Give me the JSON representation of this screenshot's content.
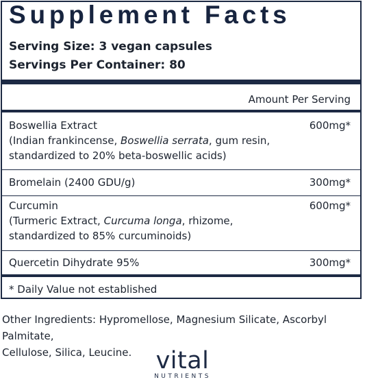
{
  "label": {
    "title": "Supplement Facts",
    "serving_size": "Serving Size: 3 vegan capsules",
    "servings_per_container": "Servings Per Container: 80",
    "amount_header": "Amount Per Serving",
    "ingredients": [
      {
        "name": "Boswellia Extract",
        "detail_prefix": "(Indian frankincense, ",
        "detail_italic": "Boswellia serrata",
        "detail_suffix": ", gum resin,",
        "detail_line2": "standardized to 20% beta-boswellic acids)",
        "amount": "600mg*"
      },
      {
        "name": "Bromelain (2400 GDU/g)",
        "amount": "300mg*"
      },
      {
        "name": "Curcumin",
        "detail_prefix": "(Turmeric Extract, ",
        "detail_italic": "Curcuma longa",
        "detail_suffix": ", rhizome,",
        "detail_line2": "standardized to 85% curcuminoids)",
        "amount": "600mg*"
      },
      {
        "name": "Quercetin Dihydrate 95%",
        "amount": "300mg*"
      }
    ],
    "footnote": "* Daily Value not established"
  },
  "other_ingredients": {
    "line1": "Other Ingredients: Hypromellose, Magnesium Silicate, Ascorbyl Palmitate,",
    "line2": "Cellulose, Silica, Leucine."
  },
  "brand": {
    "name": "vital",
    "sub": "NUTRIENTS"
  },
  "colors": {
    "navy": "#1d2a44",
    "text": "#1d2430"
  }
}
